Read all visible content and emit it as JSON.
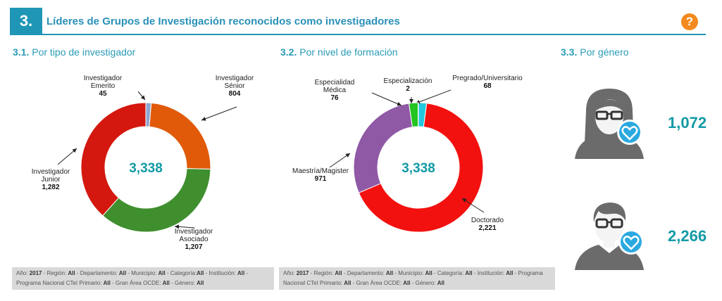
{
  "header": {
    "number": "3.",
    "title": "Líderes de Grupos de Investigación reconocidos como investigadores",
    "help_icon": "?"
  },
  "sections": [
    {
      "number": "3.1.",
      "title": "Por tipo de investigador"
    },
    {
      "number": "3.2.",
      "title": "Por nivel de formación"
    },
    {
      "number": "3.3.",
      "title": "Por género"
    }
  ],
  "colors": {
    "accent": "#1f96b6",
    "total_text": "#139aa6",
    "help": "#f38a1f",
    "filter_bg": "#d9d9d9",
    "avatar": "#6b6b6b",
    "heart_badge": "#2aa9e0"
  },
  "chart_data": [
    {
      "type": "pie",
      "variant": "donut",
      "total": "3,338",
      "series": [
        {
          "label_lines": [
            "Investigador",
            "Emerito"
          ],
          "value": 45,
          "value_label": "45",
          "color": "#8fa6d1"
        },
        {
          "label_lines": [
            "Investigador",
            "Sénior"
          ],
          "value": 804,
          "value_label": "804",
          "color": "#e05a0a"
        },
        {
          "label_lines": [
            "Investigador",
            "Asociado"
          ],
          "value": 1207,
          "value_label": "1,207",
          "color": "#3f8f2f"
        },
        {
          "label_lines": [
            "Investigador",
            "Junior"
          ],
          "value": 1282,
          "value_label": "1,282",
          "color": "#d4180f"
        }
      ]
    },
    {
      "type": "pie",
      "variant": "donut",
      "total": "3,338",
      "series": [
        {
          "label_lines": [
            "Pregrado/Universitario"
          ],
          "value": 68,
          "value_label": "68",
          "color": "#22c8dd"
        },
        {
          "label_lines": [
            "Doctorado"
          ],
          "value": 2221,
          "value_label": "2,221",
          "color": "#f2110f"
        },
        {
          "label_lines": [
            "Maestría/Magister"
          ],
          "value": 971,
          "value_label": "971",
          "color": "#8f59a6"
        },
        {
          "label_lines": [
            "Especialidad",
            "Médica"
          ],
          "value": 76,
          "value_label": "76",
          "color": "#23c41f"
        },
        {
          "label_lines": [
            "Especialización"
          ],
          "value": 2,
          "value_label": "2",
          "color": "#0a6e1a"
        }
      ]
    }
  ],
  "filters": [
    {
      "parts": [
        {
          "t": "Año: "
        },
        {
          "t": "2017",
          "b": true
        },
        {
          "t": " - Región: "
        },
        {
          "t": "All",
          "b": true
        },
        {
          "t": " - Departamento: "
        },
        {
          "t": "All",
          "b": true
        },
        {
          "t": " - Municipio: "
        },
        {
          "t": "All",
          "b": true
        },
        {
          "t": " - Categoría:"
        },
        {
          "t": "All",
          "b": true
        },
        {
          "t": " - Institución: "
        },
        {
          "t": "All",
          "b": true
        },
        {
          "t": " - Programa Nacional CTeI Primario: "
        },
        {
          "t": "All",
          "b": true
        },
        {
          "t": " - Gran Área OCDE: "
        },
        {
          "t": "All",
          "b": true
        },
        {
          "t": " - Género: "
        },
        {
          "t": "All",
          "b": true
        }
      ]
    },
    {
      "parts": [
        {
          "t": "Año: "
        },
        {
          "t": "2017",
          "b": true
        },
        {
          "t": " - Región: "
        },
        {
          "t": "All",
          "b": true
        },
        {
          "t": " - Departamento: "
        },
        {
          "t": "All",
          "b": true
        },
        {
          "t": " - Municipio: "
        },
        {
          "t": "All",
          "b": true
        },
        {
          "t": " - Categoría: "
        },
        {
          "t": "All",
          "b": true
        },
        {
          "t": " - Institución: "
        },
        {
          "t": "All",
          "b": true
        },
        {
          "t": " - Programa Nacional CTeI Primario: "
        },
        {
          "t": "All",
          "b": true
        },
        {
          "t": " - Gran Área OCDE: "
        },
        {
          "t": "All",
          "b": true
        },
        {
          "t": " - Género: "
        },
        {
          "t": "All",
          "b": true
        }
      ]
    }
  ],
  "gender": [
    {
      "icon": "female-avatar-icon",
      "count": "1,072"
    },
    {
      "icon": "male-avatar-icon",
      "count": "2,266"
    }
  ]
}
